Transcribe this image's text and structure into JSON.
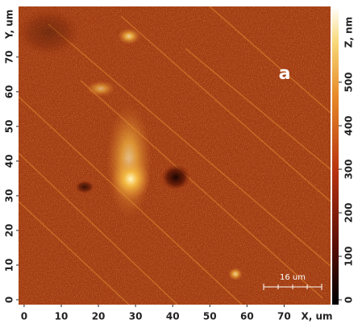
{
  "image": {
    "panel_label": "a",
    "scale_bar": "16 um",
    "x_axis": {
      "label": "X, um",
      "lim": [
        -1.5,
        82.5
      ],
      "ticks": [
        0,
        10,
        20,
        30,
        40,
        50,
        60,
        70
      ]
    },
    "y_axis": {
      "label": "Y, um",
      "lim": [
        -1.4,
        84.6
      ],
      "ticks": [
        0,
        10,
        20,
        30,
        40,
        50,
        60,
        70
      ]
    },
    "colorbar": {
      "label": "Z, nm",
      "lim": [
        -11,
        674
      ],
      "ticks": [
        0,
        100,
        200,
        300,
        400,
        500
      ]
    }
  }
}
